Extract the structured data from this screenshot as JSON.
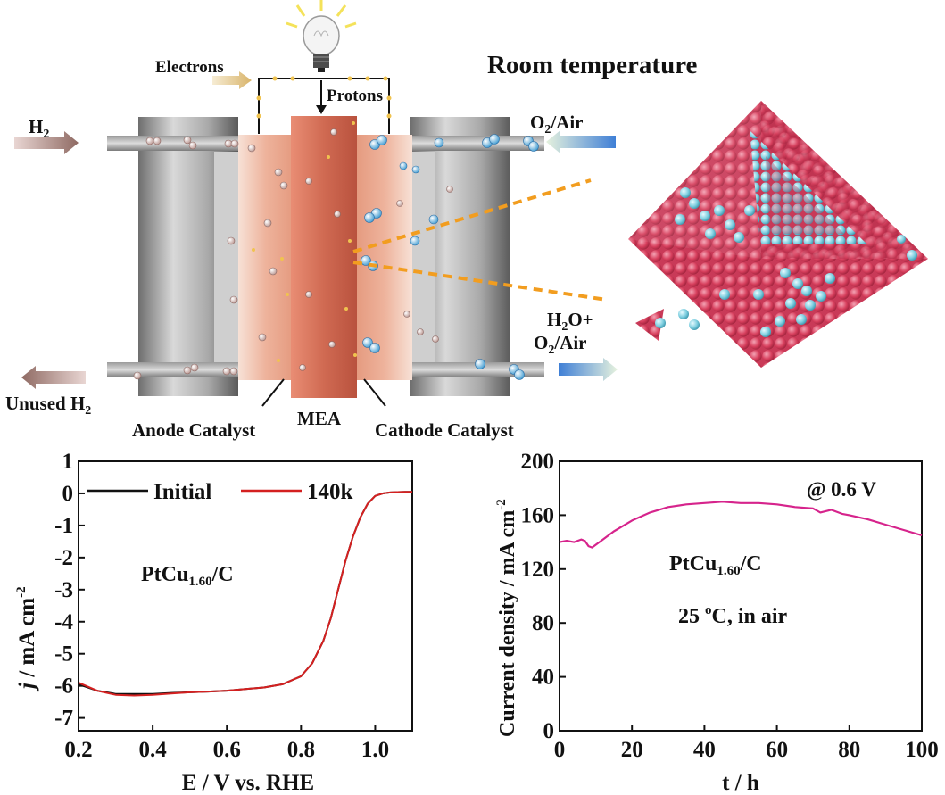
{
  "schematic": {
    "title": "Room temperature",
    "electrons": "Electrons",
    "protons": "Protons",
    "h2_in": "H",
    "h2_in_sub": "2",
    "o2_in": "O",
    "o2_in_sub": "2",
    "o2_in_rest": "/Air",
    "h2o_out_line1": "H",
    "h2o_out_line1_sub": "2",
    "h2o_out_line1_rest": "O+",
    "h2o_out_line2": "O",
    "h2o_out_line2_sub": "2",
    "h2o_out_line2_rest": "/Air",
    "unused_h2": "Unused H",
    "unused_h2_sub": "2",
    "anode_label": "Anode Catalyst",
    "mea_label": "MEA",
    "cathode_label": "Cathode Catalyst"
  },
  "chart_data": [
    {
      "type": "line",
      "ylabel_italic": "j",
      "ylabel_rest": " / mA cm",
      "ylabel_sup": "-2",
      "xlabel": "E / V vs. RHE",
      "xlim": [
        0.2,
        1.1
      ],
      "ylim": [
        -7.4,
        1
      ],
      "xticks": [
        "0.2",
        "0.4",
        "0.6",
        "0.8",
        "1.0"
      ],
      "xtick_values": [
        0.2,
        0.4,
        0.6,
        0.8,
        1.0
      ],
      "yticks": [
        "1",
        "0",
        "-1",
        "-2",
        "-3",
        "-4",
        "-5",
        "-6",
        "-7"
      ],
      "ytick_values": [
        1,
        0,
        -1,
        -2,
        -3,
        -4,
        -5,
        -6,
        -7
      ],
      "annotation_main": "PtCu",
      "annotation_sub": "1.60",
      "annotation_rest": "/C",
      "series": [
        {
          "name": "Initial",
          "color": "#111111",
          "x": [
            0.2,
            0.25,
            0.3,
            0.35,
            0.4,
            0.45,
            0.5,
            0.55,
            0.6,
            0.65,
            0.7,
            0.75,
            0.8,
            0.83,
            0.86,
            0.88,
            0.9,
            0.92,
            0.94,
            0.96,
            0.98,
            1.0,
            1.02,
            1.04,
            1.06,
            1.08,
            1.1
          ],
          "y": [
            -5.95,
            -6.15,
            -6.25,
            -6.25,
            -6.25,
            -6.22,
            -6.2,
            -6.18,
            -6.15,
            -6.1,
            -6.05,
            -5.95,
            -5.7,
            -5.3,
            -4.6,
            -3.9,
            -3.0,
            -2.1,
            -1.35,
            -0.75,
            -0.32,
            -0.08,
            0.0,
            0.03,
            0.04,
            0.05,
            0.05
          ]
        },
        {
          "name": "140k",
          "color": "#d42020",
          "x": [
            0.2,
            0.25,
            0.3,
            0.35,
            0.4,
            0.45,
            0.5,
            0.55,
            0.6,
            0.65,
            0.7,
            0.75,
            0.8,
            0.83,
            0.86,
            0.88,
            0.9,
            0.92,
            0.94,
            0.96,
            0.98,
            1.0,
            1.02,
            1.04,
            1.06,
            1.08,
            1.1
          ],
          "y": [
            -5.9,
            -6.15,
            -6.28,
            -6.3,
            -6.28,
            -6.24,
            -6.2,
            -6.18,
            -6.15,
            -6.1,
            -6.05,
            -5.95,
            -5.7,
            -5.3,
            -4.6,
            -3.9,
            -3.0,
            -2.1,
            -1.35,
            -0.75,
            -0.32,
            -0.08,
            0.0,
            0.03,
            0.04,
            0.05,
            0.05
          ]
        }
      ]
    },
    {
      "type": "line",
      "ylabel": "Current density / mA cm",
      "ylabel_sup": "-2",
      "xlabel": "t / h",
      "xlim": [
        0,
        100
      ],
      "ylim": [
        0,
        200
      ],
      "xticks": [
        "0",
        "20",
        "40",
        "60",
        "80",
        "100"
      ],
      "xtick_values": [
        0,
        20,
        40,
        60,
        80,
        100
      ],
      "yticks": [
        "0",
        "40",
        "80",
        "120",
        "160",
        "200"
      ],
      "ytick_values": [
        0,
        40,
        80,
        120,
        160,
        200
      ],
      "annotation_top": "@ 0.6 V",
      "annotation_main": "PtCu",
      "annotation_sub": "1.60",
      "annotation_rest": "/C",
      "annotation_temp": "25 ",
      "annotation_temp_sup": "o",
      "annotation_temp_rest": "C, in air",
      "series": [
        {
          "color": "#d6248c",
          "x": [
            0,
            2,
            4,
            6,
            7,
            8,
            9,
            10,
            12,
            15,
            20,
            25,
            30,
            35,
            40,
            45,
            50,
            55,
            60,
            65,
            70,
            72,
            75,
            78,
            80,
            85,
            90,
            95,
            100
          ],
          "y": [
            140,
            141,
            140,
            142,
            141,
            137,
            136,
            138,
            142,
            148,
            156,
            162,
            166,
            168,
            169,
            170,
            169,
            169,
            168,
            166,
            165,
            162,
            164,
            161,
            160,
            157,
            153,
            149,
            145
          ]
        }
      ]
    }
  ]
}
